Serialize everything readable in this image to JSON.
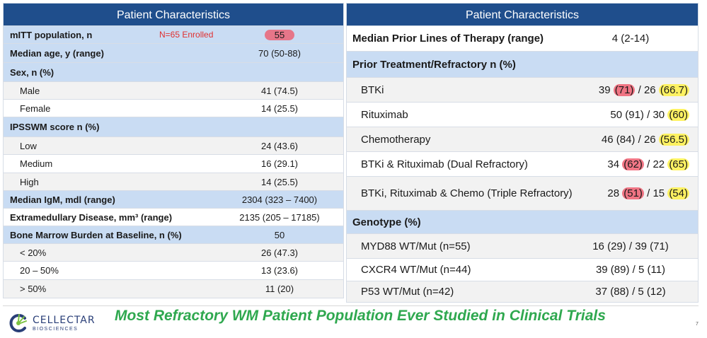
{
  "left_table": {
    "title": "Patient Characteristics",
    "enrolled_note": "N=65 Enrolled",
    "rows": [
      {
        "label": "mITT population, n",
        "value": "55"
      },
      {
        "label": "Median age, y (range)",
        "value": "70 (50-88)"
      },
      {
        "label": "Sex, n (%)",
        "value": ""
      },
      {
        "label": "Male",
        "value": "41 (74.5)"
      },
      {
        "label": "Female",
        "value": "14 (25.5)"
      },
      {
        "label": "IPSSWM score n (%)",
        "value": ""
      },
      {
        "label": "Low",
        "value": "24 (43.6)"
      },
      {
        "label": "Medium",
        "value": "16 (29.1)"
      },
      {
        "label": "High",
        "value": "14 (25.5)"
      },
      {
        "label": "Median IgM, mdl (range)",
        "value": "2304 (323 – 7400)"
      },
      {
        "label": "Extramedullary Disease, mm³ (range)",
        "value": "2135 (205 – 17185)"
      },
      {
        "label": "Bone Marrow Burden at Baseline, n (%)",
        "value": "50"
      },
      {
        "label": "< 20%",
        "value": "26 (47.3)"
      },
      {
        "label": "20 – 50%",
        "value": "13 (23.6)"
      },
      {
        "label": "> 50%",
        "value": "11 (20)"
      }
    ]
  },
  "right_table": {
    "title": "Patient Characteristics",
    "therapy_lines": {
      "label": "Median Prior Lines of Therapy (range)",
      "value": "4 (2-14)"
    },
    "prior_treatment": {
      "heading": "Prior Treatment/Refractory n (%)",
      "rows": [
        {
          "label": "BTKi",
          "n1": "39",
          "p1": "(71)",
          "n2": "26",
          "p2": "(66.7)"
        },
        {
          "label": "Rituximab",
          "n1": "50",
          "p1": "(91)",
          "n2": "30",
          "p2": "(60)"
        },
        {
          "label": "Chemotherapy",
          "n1": "46",
          "p1": "(84)",
          "n2": "26",
          "p2": "(56.5)"
        },
        {
          "label": "BTKi & Rituximab (Dual Refractory)",
          "n1": "34",
          "p1": "(62)",
          "n2": "22",
          "p2": "(65)"
        },
        {
          "label": "BTKi, Rituximab & Chemo (Triple Refractory)",
          "n1": "28",
          "p1": "(51)",
          "n2": "15",
          "p2": "(54)"
        }
      ]
    },
    "genotype": {
      "heading": "Genotype (%)",
      "rows": [
        {
          "label": "MYD88 WT/Mut (n=55)",
          "value": "16 (29) / 39 (71)"
        },
        {
          "label": "CXCR4 WT/Mut (n=44)",
          "value": "39 (89) / 5 (11)"
        },
        {
          "label": "P53 WT/Mut (n=42)",
          "value": "37 (88) / 5 (12)"
        }
      ]
    }
  },
  "footer": {
    "logo_name": "CELLECTAR",
    "logo_sub": "BIOSCIENCES",
    "tagline": "Most Refractory WM Patient Population Ever Studied in Clinical Trials",
    "page_number": "7"
  },
  "colors": {
    "header_bg": "#1f4e8c",
    "section_bg": "#c9dcf3",
    "highlight_red": "#ee4a5e",
    "highlight_yellow": "#fff03c",
    "tagline_green": "#2fa84f"
  }
}
